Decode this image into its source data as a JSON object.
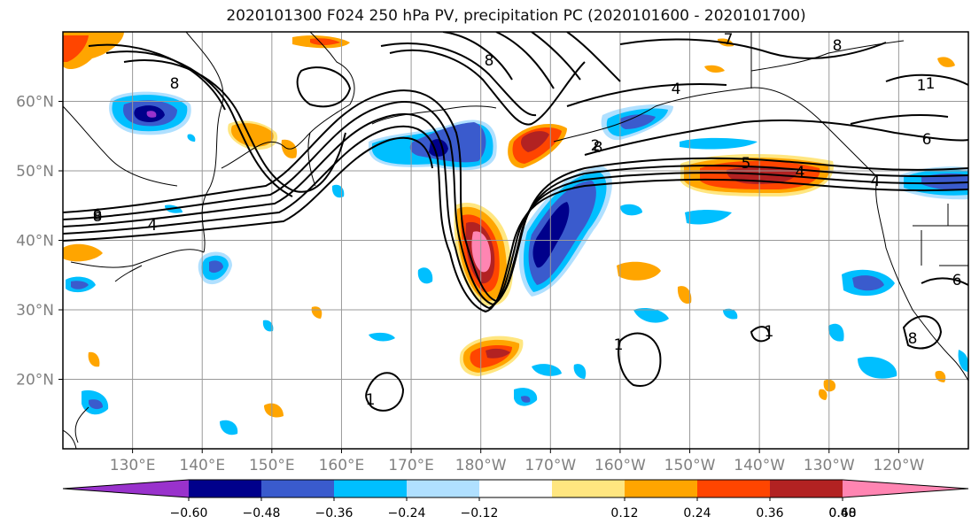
{
  "title": "2020101300 F024 250 hPa PV, precipitation PC (2020101600 - 2020101700)",
  "map": {
    "lon_min": 120,
    "lon_max": 250,
    "lat_min": 10,
    "lat_max": 70,
    "grid_lons": [
      130,
      140,
      150,
      160,
      170,
      180,
      190,
      200,
      210,
      220,
      230,
      240
    ],
    "grid_lats": [
      20,
      30,
      40,
      50,
      60
    ],
    "lon_labels": [
      "130°E",
      "140°E",
      "150°E",
      "160°E",
      "170°E",
      "180°W",
      "170°W",
      "160°W",
      "150°W",
      "140°W",
      "130°W",
      "120°W"
    ],
    "lat_labels": [
      "20°N",
      "30°N",
      "40°N",
      "50°N",
      "60°N"
    ]
  },
  "colorbar": {
    "colors": [
      "#9932cc",
      "#00008b",
      "#3a5bcd",
      "#00bfff",
      "#b0e0ff",
      "#ffffff",
      "#ffe680",
      "#ffa500",
      "#ff4500",
      "#b22222",
      "#ff85b2"
    ],
    "ticks": [
      "−0.60",
      "−0.48",
      "−0.36",
      "−0.24",
      "−0.12",
      "0.12",
      "0.24",
      "0.36",
      "0.48",
      "0.60"
    ]
  },
  "contour_labels": [
    "8",
    "8",
    "6",
    "4",
    "8",
    "4",
    "6",
    "8",
    "7",
    "4",
    "5",
    "4",
    "6",
    "2",
    "1",
    "1",
    "1",
    "1",
    "8",
    "8",
    "1"
  ]
}
